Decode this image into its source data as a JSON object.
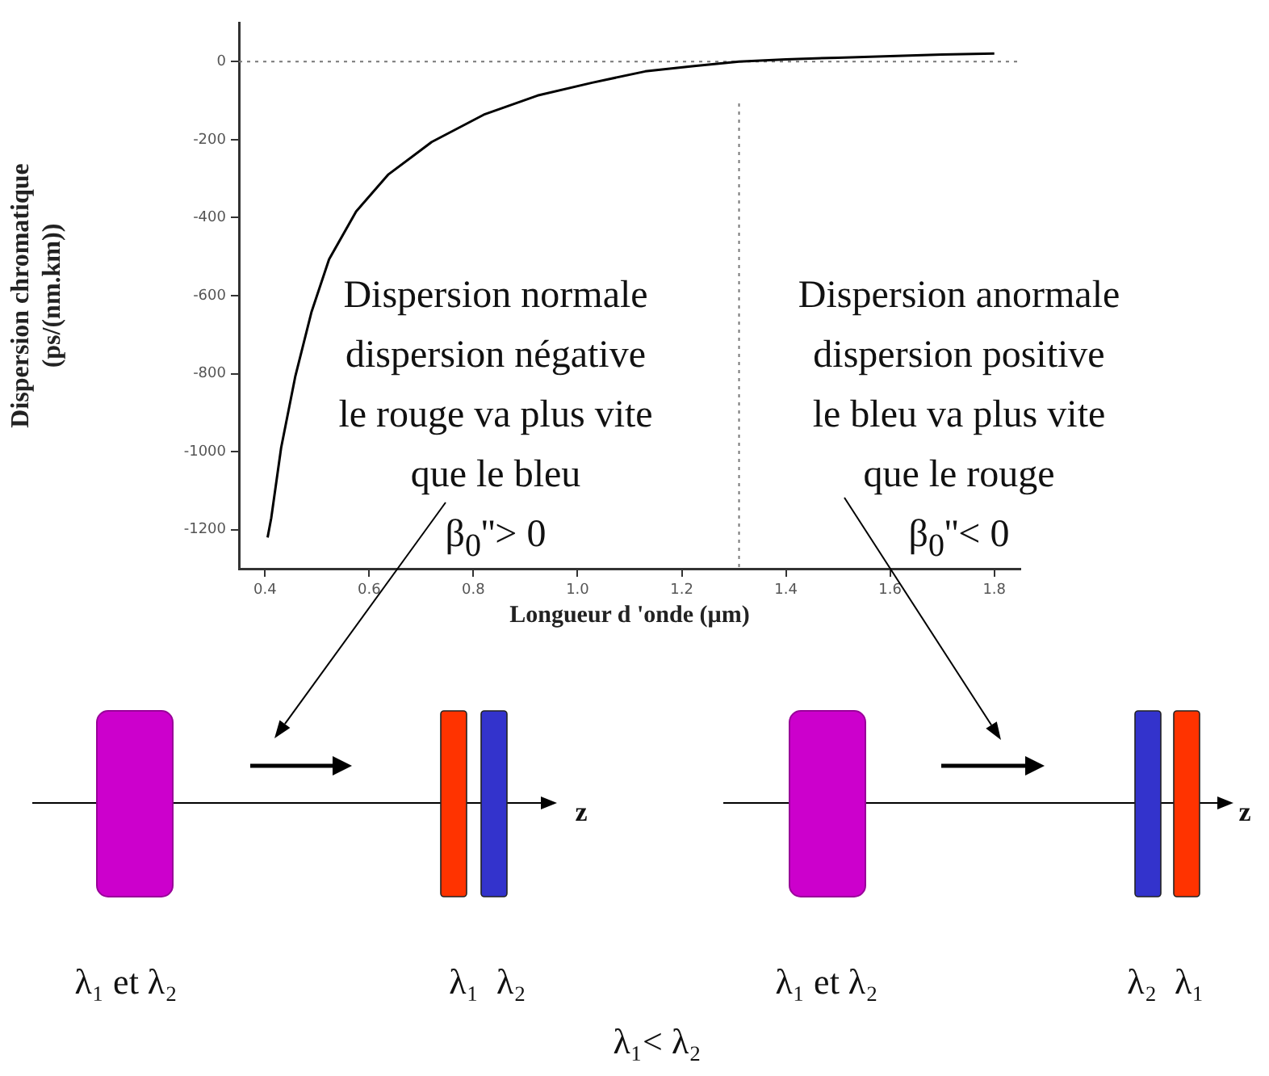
{
  "chart_data": {
    "type": "line",
    "xlabel": "Longueur d 'onde (µm)",
    "ylabel": "Dispersion chromatique\n(ps/(nm.km))",
    "x": [
      0.405,
      0.412,
      0.431,
      0.458,
      0.489,
      0.523,
      0.575,
      0.637,
      0.72,
      0.82,
      0.923,
      1.028,
      1.13,
      1.22,
      1.31,
      1.4,
      1.5,
      1.6,
      1.7,
      1.8
    ],
    "series": [
      {
        "color": "#000000",
        "values": [
          -1220,
          -1170,
          -990,
          -808,
          -643,
          -507,
          -384,
          -289,
          -206,
          -136,
          -87,
          -54,
          -25,
          -12,
          0,
          6,
          10,
          14,
          18,
          21
        ]
      }
    ],
    "xlim": [
      0.35,
      1.85
    ],
    "ylim": [
      -1300,
      100
    ],
    "xticks": [
      0.4,
      0.6,
      0.8,
      {
        "value": 1,
        "label": "1.0"
      },
      1.2,
      1.4,
      1.6,
      1.8
    ],
    "yticks": [
      -1200,
      -1000,
      -800,
      -600,
      -400,
      -200,
      0
    ],
    "grid": false,
    "legend": false,
    "marker": "none",
    "line_style": "solid",
    "ref_lines": [
      {
        "axis": "y",
        "value": 0,
        "color": "#777777",
        "line_style": "dotted"
      },
      {
        "axis": "x",
        "value": 1.31,
        "color": "#777777",
        "line_style": "dotted"
      }
    ],
    "annotations": [
      "Dispersion normale\ndispersion négative\nle rouge va plus vite\nque le bleu\nβ$_{0}$''> 0",
      "Dispersion anormale\ndispersion positive\nle bleu va plus vite\nque le rouge\nβ$_{0}$''< 0",
      "λ₁ et λ₂",
      "λ₁  λ₂",
      "z",
      "λ₁ et λ₂",
      "λ₂  λ₁",
      "z",
      "λ₁< λ₂"
    ]
  }
}
